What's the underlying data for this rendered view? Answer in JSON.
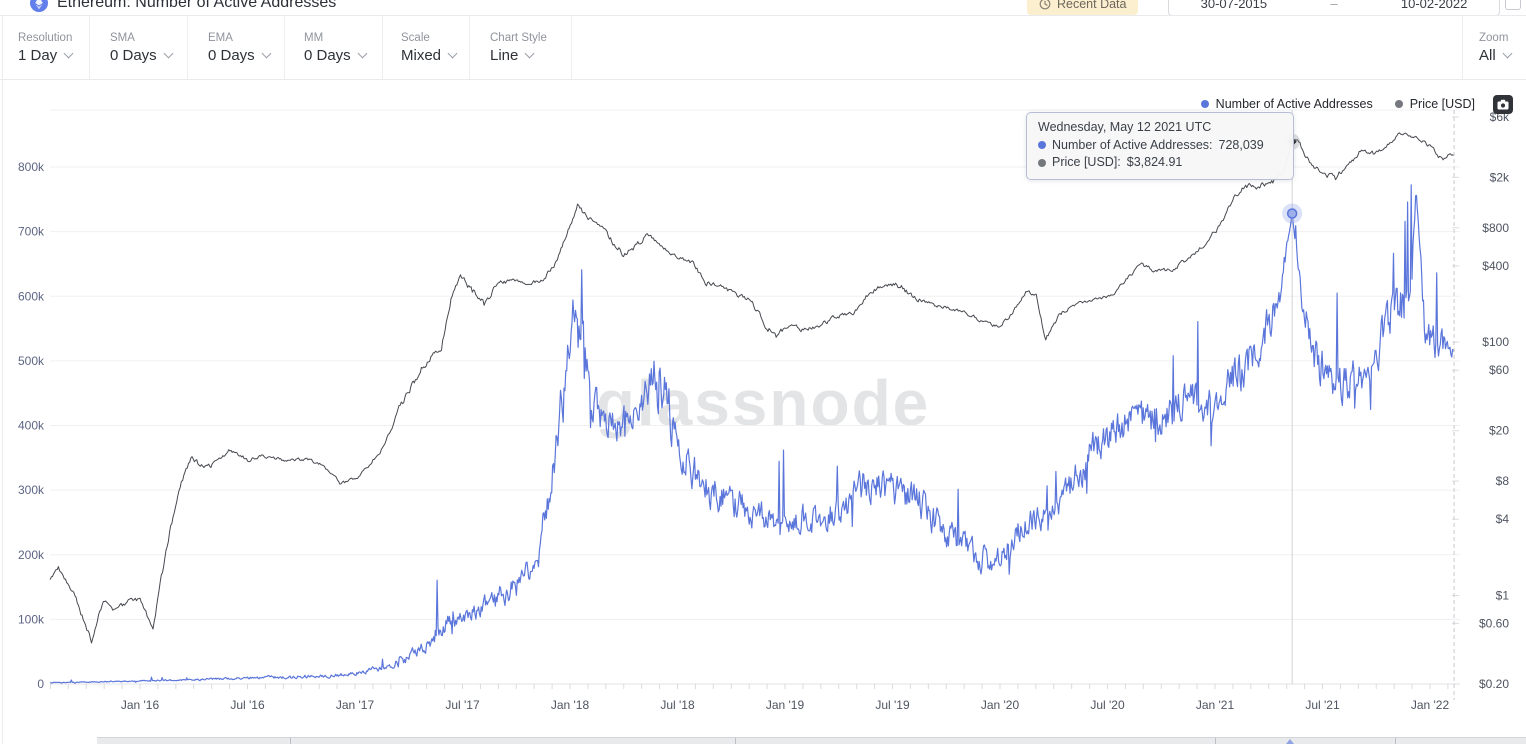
{
  "header": {
    "title": "Ethereum: Number of Active Addresses",
    "recent_data_label": "Recent Data",
    "date_from": "30-07-2015",
    "date_to": "10-02-2022",
    "date_separator": "–"
  },
  "toolbar": {
    "groups": [
      {
        "label": "Resolution",
        "value": "1 Day"
      },
      {
        "label": "SMA",
        "value": "0 Days"
      },
      {
        "label": "EMA",
        "value": "0 Days"
      },
      {
        "label": "MM",
        "value": "0 Days"
      },
      {
        "label": "Scale",
        "value": "Mixed"
      },
      {
        "label": "Chart Style",
        "value": "Line"
      }
    ],
    "zoom": {
      "label": "Zoom",
      "value": "All"
    }
  },
  "legend": [
    {
      "label": "Number of Active Addresses",
      "color": "#5b76db"
    },
    {
      "label": "Price [USD]",
      "color": "#75787d"
    }
  ],
  "tooltip": {
    "title": "Wednesday, May 12 2021 UTC",
    "rows": [
      {
        "label": "Number of Active Addresses:",
        "value": "728,039",
        "color": "#5b76db"
      },
      {
        "label": "Price [USD]:",
        "value": "$3,824.91",
        "color": "#75787d"
      }
    ]
  },
  "watermark": "glassnode",
  "icons": {
    "camera": "camera-icon",
    "clock": "clock-icon",
    "calendar": "calendar-icon",
    "asset": "ethereum-icon"
  },
  "chart_data": {
    "type": "line",
    "title": "Ethereum: Number of Active Addresses",
    "x_axis": {
      "ticks": [
        {
          "t": 2016.0,
          "label": "Jan '16"
        },
        {
          "t": 2016.5,
          "label": "Jul '16"
        },
        {
          "t": 2017.0,
          "label": "Jan '17"
        },
        {
          "t": 2017.5,
          "label": "Jul '17"
        },
        {
          "t": 2018.0,
          "label": "Jan '18"
        },
        {
          "t": 2018.5,
          "label": "Jul '18"
        },
        {
          "t": 2019.0,
          "label": "Jan '19"
        },
        {
          "t": 2019.5,
          "label": "Jul '19"
        },
        {
          "t": 2020.0,
          "label": "Jan '20"
        },
        {
          "t": 2020.5,
          "label": "Jul '20"
        },
        {
          "t": 2021.0,
          "label": "Jan '21"
        },
        {
          "t": 2021.5,
          "label": "Jul '21"
        },
        {
          "t": 2022.0,
          "label": "Jan '22"
        }
      ]
    },
    "left_axis": {
      "name": "Number of Active Addresses",
      "scale": "linear",
      "unit": "thousands",
      "range_k": [
        0,
        888
      ],
      "ticks": [
        {
          "v": 0,
          "label": "0"
        },
        {
          "v": 100,
          "label": "100k"
        },
        {
          "v": 200,
          "label": "200k"
        },
        {
          "v": 300,
          "label": "300k"
        },
        {
          "v": 400,
          "label": "400k"
        },
        {
          "v": 500,
          "label": "500k"
        },
        {
          "v": 600,
          "label": "600k"
        },
        {
          "v": 700,
          "label": "700k"
        },
        {
          "v": 800,
          "label": "800k"
        }
      ]
    },
    "right_axis": {
      "name": "Price [USD]",
      "scale": "log",
      "unit": "USD",
      "range_usd": [
        0.2,
        6780
      ],
      "ticks": [
        {
          "v": 0.2,
          "label": "$0.20"
        },
        {
          "v": 0.6,
          "label": "$0.60"
        },
        {
          "v": 1,
          "label": "$1"
        },
        {
          "v": 4,
          "label": "$4"
        },
        {
          "v": 8,
          "label": "$8"
        },
        {
          "v": 20,
          "label": "$20"
        },
        {
          "v": 60,
          "label": "$60"
        },
        {
          "v": 100,
          "label": "$100"
        },
        {
          "v": 400,
          "label": "$400"
        },
        {
          "v": 800,
          "label": "$800"
        },
        {
          "v": 2000,
          "label": "$2k"
        },
        {
          "v": 6000,
          "label": "$6k"
        }
      ]
    },
    "data_range": {
      "start_t": 2015.582,
      "end_t": 2022.112,
      "start_date": "30-07-2015",
      "end_date": "10-02-2022"
    },
    "highlight": {
      "t": 2021.3589,
      "date": "Wednesday, May 12 2021 UTC",
      "addresses": 728039,
      "price_usd": 3824.91
    },
    "series": [
      {
        "name": "Number of Active Addresses",
        "axis": "left",
        "color": "#5b76db",
        "unit": "thousands",
        "points_tvj": [
          [
            2015.582,
            2,
            1
          ],
          [
            2015.75,
            3,
            1.5
          ],
          [
            2016.0,
            5,
            2
          ],
          [
            2016.2,
            6,
            2.5
          ],
          [
            2016.45,
            9,
            4
          ],
          [
            2016.7,
            11,
            5
          ],
          [
            2016.9,
            13,
            5
          ],
          [
            2017.0,
            16,
            6
          ],
          [
            2017.12,
            24,
            9
          ],
          [
            2017.25,
            40,
            15
          ],
          [
            2017.38,
            80,
            28
          ],
          [
            2017.5,
            105,
            32
          ],
          [
            2017.62,
            125,
            35
          ],
          [
            2017.75,
            150,
            40
          ],
          [
            2017.85,
            195,
            45
          ],
          [
            2017.95,
            400,
            90
          ],
          [
            2018.03,
            590,
            85
          ],
          [
            2018.1,
            430,
            60
          ],
          [
            2018.2,
            400,
            50
          ],
          [
            2018.3,
            415,
            55
          ],
          [
            2018.42,
            470,
            100
          ],
          [
            2018.52,
            350,
            60
          ],
          [
            2018.65,
            300,
            50
          ],
          [
            2018.8,
            275,
            45
          ],
          [
            2018.95,
            250,
            40
          ],
          [
            2019.1,
            258,
            45
          ],
          [
            2019.25,
            262,
            48
          ],
          [
            2019.42,
            325,
            62
          ],
          [
            2019.52,
            298,
            55
          ],
          [
            2019.62,
            278,
            52
          ],
          [
            2019.75,
            232,
            45
          ],
          [
            2019.9,
            196,
            40
          ],
          [
            2020.0,
            188,
            42
          ],
          [
            2020.1,
            252,
            48
          ],
          [
            2020.22,
            252,
            44
          ],
          [
            2020.32,
            300,
            50
          ],
          [
            2020.45,
            368,
            54
          ],
          [
            2020.6,
            408,
            58
          ],
          [
            2020.75,
            415,
            62
          ],
          [
            2020.88,
            438,
            58
          ],
          [
            2021.0,
            432,
            56
          ],
          [
            2021.08,
            470,
            62
          ],
          [
            2021.16,
            492,
            68
          ],
          [
            2021.24,
            545,
            62
          ],
          [
            2021.3,
            605,
            48
          ],
          [
            2021.3589,
            728,
            0
          ],
          [
            2021.41,
            585,
            60
          ],
          [
            2021.48,
            492,
            68
          ],
          [
            2021.56,
            462,
            56
          ],
          [
            2021.66,
            472,
            60
          ],
          [
            2021.74,
            502,
            60
          ],
          [
            2021.82,
            578,
            62
          ],
          [
            2021.9,
            588,
            78
          ],
          [
            2021.935,
            765,
            0
          ],
          [
            2021.98,
            528,
            60
          ],
          [
            2022.05,
            522,
            58
          ],
          [
            2022.112,
            512,
            25
          ]
        ]
      },
      {
        "name": "Price [USD]",
        "axis": "right",
        "color": "#46494f",
        "unit": "USD",
        "points_tvj": [
          [
            2015.582,
            1.35,
            0.02
          ],
          [
            2015.62,
            1.65,
            0.03
          ],
          [
            2015.7,
            0.95,
            0.04
          ],
          [
            2015.775,
            0.44,
            0.04
          ],
          [
            2015.83,
            0.92,
            0.04
          ],
          [
            2015.88,
            0.76,
            0.03
          ],
          [
            2015.95,
            0.9,
            0.03
          ],
          [
            2016.0,
            0.92,
            0.03
          ],
          [
            2016.06,
            0.55,
            0.04
          ],
          [
            2016.12,
            2.2,
            0.05
          ],
          [
            2016.18,
            7.2,
            0.05
          ],
          [
            2016.24,
            11.8,
            0.04
          ],
          [
            2016.3,
            10.2,
            0.035
          ],
          [
            2016.36,
            11.2,
            0.03
          ],
          [
            2016.42,
            14.2,
            0.03
          ],
          [
            2016.5,
            11.8,
            0.03
          ],
          [
            2016.58,
            12.6,
            0.025
          ],
          [
            2016.68,
            11.6,
            0.02
          ],
          [
            2016.78,
            11.9,
            0.02
          ],
          [
            2016.85,
            10.6,
            0.02
          ],
          [
            2016.93,
            7.8,
            0.025
          ],
          [
            2017.0,
            8.2,
            0.02
          ],
          [
            2017.07,
            10.8,
            0.025
          ],
          [
            2017.14,
            15.8,
            0.035
          ],
          [
            2017.2,
            28,
            0.05
          ],
          [
            2017.27,
            48,
            0.05
          ],
          [
            2017.34,
            72,
            0.05
          ],
          [
            2017.4,
            88,
            0.05
          ],
          [
            2017.45,
            225,
            0.05
          ],
          [
            2017.49,
            345,
            0.04
          ],
          [
            2017.54,
            260,
            0.05
          ],
          [
            2017.6,
            198,
            0.05
          ],
          [
            2017.66,
            290,
            0.035
          ],
          [
            2017.73,
            298,
            0.03
          ],
          [
            2017.8,
            292,
            0.03
          ],
          [
            2017.87,
            302,
            0.03
          ],
          [
            2017.93,
            420,
            0.035
          ],
          [
            2017.99,
            740,
            0.04
          ],
          [
            2018.035,
            1230,
            0.035
          ],
          [
            2018.08,
            940,
            0.04
          ],
          [
            2018.13,
            870,
            0.04
          ],
          [
            2018.19,
            640,
            0.045
          ],
          [
            2018.25,
            490,
            0.045
          ],
          [
            2018.31,
            590,
            0.04
          ],
          [
            2018.36,
            690,
            0.03
          ],
          [
            2018.43,
            575,
            0.03
          ],
          [
            2018.5,
            465,
            0.03
          ],
          [
            2018.57,
            425,
            0.03
          ],
          [
            2018.63,
            292,
            0.04
          ],
          [
            2018.71,
            282,
            0.03
          ],
          [
            2018.78,
            228,
            0.03
          ],
          [
            2018.84,
            218,
            0.03
          ],
          [
            2018.9,
            142,
            0.04
          ],
          [
            2018.96,
            112,
            0.04
          ],
          [
            2019.02,
            138,
            0.03
          ],
          [
            2019.08,
            126,
            0.03
          ],
          [
            2019.16,
            136,
            0.03
          ],
          [
            2019.24,
            158,
            0.03
          ],
          [
            2019.32,
            172,
            0.03
          ],
          [
            2019.4,
            252,
            0.035
          ],
          [
            2019.47,
            298,
            0.04
          ],
          [
            2019.54,
            276,
            0.035
          ],
          [
            2019.6,
            222,
            0.035
          ],
          [
            2019.68,
            202,
            0.03
          ],
          [
            2019.76,
            186,
            0.025
          ],
          [
            2019.84,
            172,
            0.025
          ],
          [
            2019.92,
            146,
            0.025
          ],
          [
            2020.0,
            131,
            0.025
          ],
          [
            2020.06,
            172,
            0.025
          ],
          [
            2020.12,
            252,
            0.025
          ],
          [
            2020.17,
            228,
            0.03
          ],
          [
            2020.21,
            108,
            0.04
          ],
          [
            2020.28,
            168,
            0.03
          ],
          [
            2020.36,
            202,
            0.025
          ],
          [
            2020.44,
            216,
            0.02
          ],
          [
            2020.52,
            232,
            0.02
          ],
          [
            2020.6,
            332,
            0.025
          ],
          [
            2020.66,
            418,
            0.03
          ],
          [
            2020.72,
            362,
            0.03
          ],
          [
            2020.8,
            372,
            0.025
          ],
          [
            2020.88,
            462,
            0.025
          ],
          [
            2020.96,
            608,
            0.03
          ],
          [
            2021.02,
            820,
            0.04
          ],
          [
            2021.08,
            1320,
            0.04
          ],
          [
            2021.14,
            1760,
            0.04
          ],
          [
            2021.2,
            1680,
            0.04
          ],
          [
            2021.27,
            1860,
            0.04
          ],
          [
            2021.32,
            2320,
            0.035
          ],
          [
            2021.3589,
            3824.91,
            0
          ],
          [
            2021.385,
            3950,
            0.03
          ],
          [
            2021.44,
            2580,
            0.045
          ],
          [
            2021.5,
            2120,
            0.04
          ],
          [
            2021.56,
            1960,
            0.04
          ],
          [
            2021.62,
            2560,
            0.035
          ],
          [
            2021.68,
            3260,
            0.03
          ],
          [
            2021.74,
            3080,
            0.03
          ],
          [
            2021.8,
            3560,
            0.025
          ],
          [
            2021.86,
            4480,
            0.02
          ],
          [
            2021.9,
            4280,
            0.02
          ],
          [
            2021.96,
            3920,
            0.025
          ],
          [
            2022.02,
            3280,
            0.03
          ],
          [
            2022.06,
            2680,
            0.03
          ],
          [
            2022.09,
            3060,
            0.02
          ],
          [
            2022.112,
            3020,
            0.015
          ]
        ]
      }
    ],
    "legend_position": "top-right",
    "grid": "horizontal-only"
  }
}
